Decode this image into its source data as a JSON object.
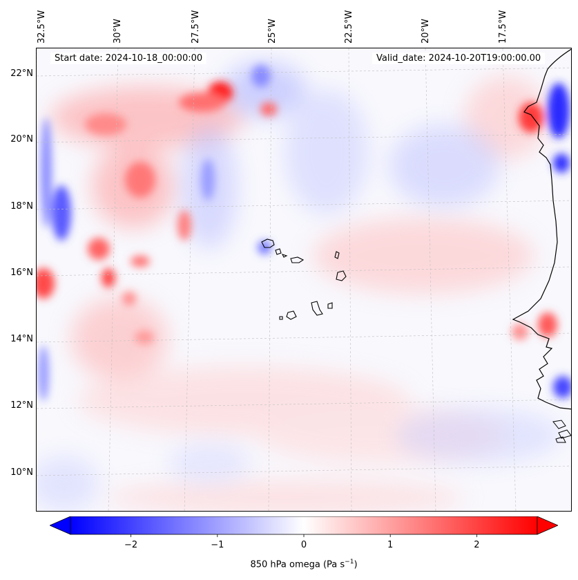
{
  "map": {
    "title_left": "Start date: 2024-10-18_00:00:00",
    "title_right": "Valid_date: 2024-10-20T19:00:00.00",
    "lon_labels": [
      "32.5°W",
      "30°W",
      "27.5°W",
      "25°W",
      "22.5°W",
      "20°W",
      "17.5°W"
    ],
    "lat_labels": [
      "22°N",
      "20°N",
      "18°N",
      "16°N",
      "14°N",
      "12°N",
      "10°N"
    ],
    "variable": "850 hPa omega",
    "colors": {
      "negative": "#0000ff",
      "neutral": "#ffffff",
      "positive": "#ff0000",
      "coast": "#000000",
      "grid": "#bbbbbb"
    },
    "features": {
      "islands": "Cabo Verde",
      "coast": "West Africa",
      "strong_positive": [
        "near 26.5°W 21.5°N",
        "near 32°W 16°N",
        "near 16.5°W 20.5°N"
      ],
      "strong_negative": [
        "near 32°W 18°N",
        "near 16.5°W 19.5°N",
        "near 16°W 12.5°N"
      ]
    }
  },
  "colorbar": {
    "label_prefix": "850 hPa omega (Pa s",
    "label_exp": "−1",
    "label_suffix": ")",
    "min": -2.7,
    "max": 2.7,
    "ticks": [
      "−2",
      "−1",
      "0",
      "1",
      "2"
    ],
    "tick_values": [
      -2,
      -1,
      0,
      1,
      2
    ]
  }
}
